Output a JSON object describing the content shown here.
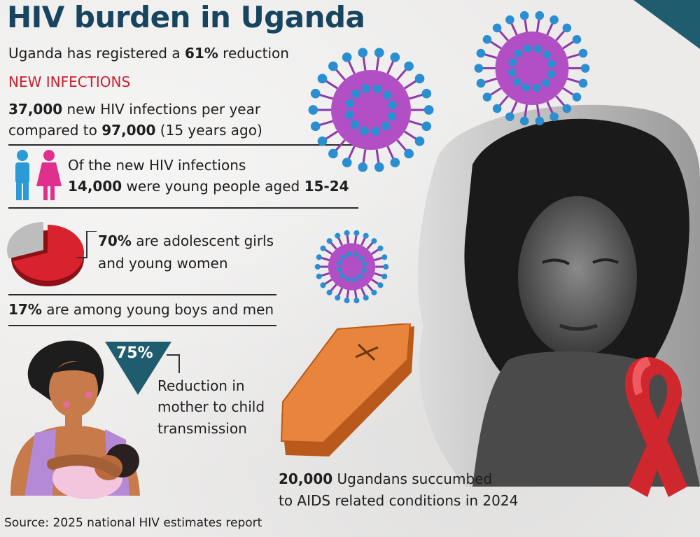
{
  "title": "HIV burden in Uganda",
  "reduction": {
    "prefix": "Uganda has registered a ",
    "value": "61%",
    "suffix": " reduction"
  },
  "new_infections": {
    "heading": "NEW INFECTIONS",
    "line1_value": "37,000",
    "line1_rest": " new HIV infections per year",
    "line2_prefix": "compared to ",
    "line2_value": "97,000",
    "line2_rest": " (15 years ago)"
  },
  "young": {
    "line1": "Of the new HIV infections",
    "value": "14,000",
    "middle": " were young people aged ",
    "age": "15-24"
  },
  "pie": {
    "value": "70%",
    "line1_rest": " are adolescent girls",
    "line2": "and young women",
    "fraction": 0.7
  },
  "boys": {
    "value": "17%",
    "rest": " are among young boys and men"
  },
  "pmtct": {
    "value": "75%",
    "line1": "Reduction in",
    "line2": "mother to child",
    "line3": "transmission"
  },
  "deaths": {
    "value": "20,000",
    "line1_rest": " Ugandans succumbed",
    "line2": "to AIDS related conditions in 2024"
  },
  "source": "Source: 2025 national HIV estimates report",
  "colors": {
    "title": "#17445e",
    "accent_red": "#c8202f",
    "teal": "#1f5d6e",
    "virus_purple": "#b24fc4",
    "virus_blue": "#2a8fd0"
  }
}
